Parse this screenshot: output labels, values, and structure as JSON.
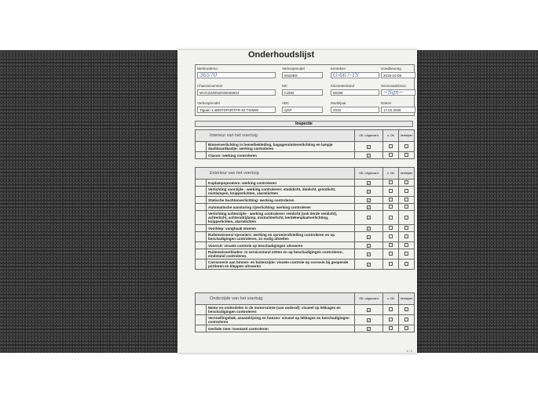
{
  "title": "Onderhoudslijst",
  "fields": [
    {
      "label": "Werkorderno.",
      "value": "36570",
      "handwritten": true
    },
    {
      "label": "Verkoopmodel",
      "value": "5N22BX"
    },
    {
      "label": "Kenteken",
      "value": "G-667-TS",
      "handwritten": true
    },
    {
      "label": "Goedkeuring",
      "value": "2015-10-08"
    },
    {
      "label": "Chassisnummer",
      "value": "WVGZZZ5NZGW028923"
    },
    {
      "label": "MC",
      "value": "CZDB"
    },
    {
      "label": "Kilometerstand",
      "value": "88188"
    },
    {
      "label": "Serviceadviseur",
      "value": "signature",
      "handwritten": true
    },
    {
      "label": "Verkoopmodel",
      "value": "Tiguan 1.4BMTSPORTFR 92 TSIM6F"
    },
    {
      "label": "VBC",
      "value": "QKP"
    },
    {
      "label": "Modeljaar",
      "value": "2016"
    },
    {
      "label": "Datum",
      "value": "17.01.2025"
    }
  ],
  "inspection_label": "Inspectie",
  "columns": {
    "ok": "OK / uitgevoerd",
    "nok": "n. OK",
    "fix": "Verhelpen"
  },
  "check_icon": "checkbox-checked",
  "sections": [
    {
      "title": "Interieur van het voertuig",
      "items": [
        "Binnenverlichting in hemelbekleding, bagageruimteverlichting en lampje dashboardkastje: werking controleren",
        "Claxon: werking controleren"
      ]
    },
    {
      "title": "Exterieur van het voertuig",
      "items": [
        "Koplampsproeiers: werking controleren",
        "Verlichting voorzijde - werking controleren: stadslicht, dimlicht, grootlicht, mistlampen, knipperlichten, alarmlichten",
        "Statische bochtenverlichting: werking controleren",
        "Automatische aansturing rijverlichting: werking controleren",
        "Verlichting achterzijde - werking controleren: remlicht (ook derde remlicht), achterlicht, achteruitrijlamp, mistachterlicht, kentekenplaatverlichting, knipperlichten, alarmlichten",
        "Voorklep: vanghaak smeren",
        "Ruitenwissers/-sproeiers: werking en sproeierafstelling controleren en op beschadigingen controleren, zo nodig afstellen",
        "Voorruit: visuele controle op beschadigingen uitvoeren",
        "Ruitenwisserbladen: in servicestand zetten en op beschadigingen controleren, eindstand controleren.",
        "Carrosserie aan binnen- en buitenzijde: visuele controle op corrosie bij geopende portieren en kleppen uitvoeren"
      ]
    },
    {
      "title": "Onderzijde van het voertuig",
      "items": [
        "Motor en onderdelen in de motorruimte (van onderaf): visueel op lekkages en beschadigingen controleren",
        "Versnellingsbak, asaandrijving en hoezen: visueel op lekkages en beschadigingen controleren",
        "Geribde riem: toestand controleren"
      ]
    }
  ],
  "page_number": "1 / 1"
}
